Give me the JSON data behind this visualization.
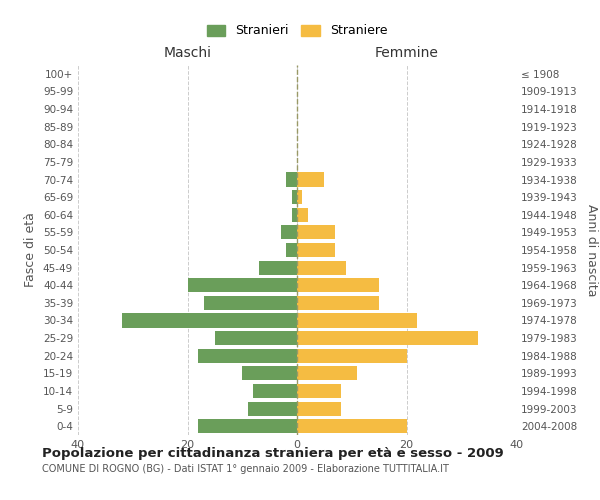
{
  "age_groups": [
    "0-4",
    "5-9",
    "10-14",
    "15-19",
    "20-24",
    "25-29",
    "30-34",
    "35-39",
    "40-44",
    "45-49",
    "50-54",
    "55-59",
    "60-64",
    "65-69",
    "70-74",
    "75-79",
    "80-84",
    "85-89",
    "90-94",
    "95-99",
    "100+"
  ],
  "birth_years": [
    "2004-2008",
    "1999-2003",
    "1994-1998",
    "1989-1993",
    "1984-1988",
    "1979-1983",
    "1974-1978",
    "1969-1973",
    "1964-1968",
    "1959-1963",
    "1954-1958",
    "1949-1953",
    "1944-1948",
    "1939-1943",
    "1934-1938",
    "1929-1933",
    "1924-1928",
    "1919-1923",
    "1914-1918",
    "1909-1913",
    "≤ 1908"
  ],
  "maschi": [
    18,
    9,
    8,
    10,
    18,
    15,
    32,
    17,
    20,
    7,
    2,
    3,
    1,
    1,
    2,
    0,
    0,
    0,
    0,
    0,
    0
  ],
  "femmine": [
    20,
    8,
    8,
    11,
    20,
    33,
    22,
    15,
    15,
    9,
    7,
    7,
    2,
    1,
    5,
    0,
    0,
    0,
    0,
    0,
    0
  ],
  "color_maschi": "#6a9e5a",
  "color_femmine": "#f5bc42",
  "title": "Popolazione per cittadinanza straniera per età e sesso - 2009",
  "subtitle": "COMUNE DI ROGNO (BG) - Dati ISTAT 1° gennaio 2009 - Elaborazione TUTTITALIA.IT",
  "xlabel_left": "Maschi",
  "xlabel_right": "Femmine",
  "ylabel_left": "Fasce di età",
  "ylabel_right": "Anni di nascita",
  "xlim": 40,
  "legend_stranieri": "Stranieri",
  "legend_straniere": "Straniere",
  "bg_color": "#ffffff"
}
